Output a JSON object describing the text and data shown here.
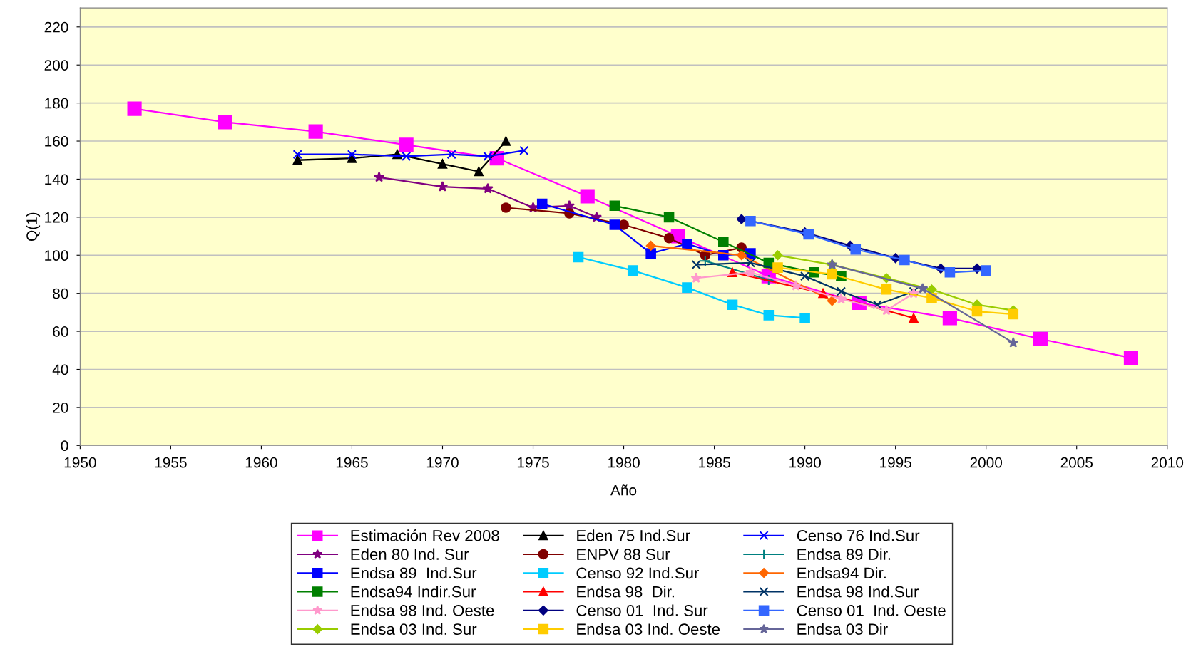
{
  "chart_data": {
    "type": "line",
    "xlabel": "Año",
    "ylabel": "Q(1)",
    "xlim": [
      1950,
      2010
    ],
    "xticks": [
      1950,
      1955,
      1960,
      1965,
      1970,
      1975,
      1980,
      1985,
      1990,
      1995,
      2000,
      2005,
      2010
    ],
    "ylim": [
      0,
      230
    ],
    "yticks": [
      0,
      20,
      40,
      60,
      80,
      100,
      120,
      140,
      160,
      180,
      200,
      220
    ],
    "grid": "y",
    "legend": "bottom",
    "line_style": "solid",
    "series": [
      {
        "name": "Estimación Rev 2008",
        "color": "#ff00ff",
        "marker": "square",
        "x": [
          1953,
          1958,
          1963,
          1968,
          1973,
          1978,
          1983,
          1988,
          1993,
          1998,
          2003,
          2008
        ],
        "values": [
          177,
          170,
          165,
          158,
          151,
          131,
          110,
          89,
          75,
          67,
          56,
          46
        ]
      },
      {
        "name": "Eden 75 Ind.Sur",
        "color": "#000000",
        "marker": "triangle",
        "x": [
          1962,
          1965,
          1967.5,
          1970,
          1972,
          1973.5
        ],
        "values": [
          150,
          151,
          153,
          148,
          144,
          160
        ]
      },
      {
        "name": "Censo 76 Ind.Sur",
        "color": "#0000ff",
        "marker": "cross",
        "x": [
          1962,
          1965,
          1968,
          1970.5,
          1972.5,
          1974.5
        ],
        "values": [
          153,
          153,
          152,
          153,
          152,
          155
        ]
      },
      {
        "name": "Eden 80 Ind. Sur",
        "color": "#800080",
        "marker": "star",
        "x": [
          1966.5,
          1970,
          1972.5,
          1975,
          1977,
          1978.5
        ],
        "values": [
          141,
          136,
          135,
          125,
          126,
          120
        ]
      },
      {
        "name": "ENPV 88 Sur",
        "color": "#800000",
        "marker": "circle",
        "x": [
          1973.5,
          1977,
          1980,
          1982.5,
          1984.5,
          1986.5
        ],
        "values": [
          125,
          122,
          116,
          109,
          100,
          104
        ]
      },
      {
        "name": "Endsa 89 Dir.",
        "color": "#008080",
        "marker": "plus",
        "x": [
          1984.5,
          1988
        ],
        "values": [
          97,
          87
        ]
      },
      {
        "name": "Endsa 89  Ind.Sur",
        "color": "#0000ff",
        "marker": "square",
        "x": [
          1975.5,
          1979.5,
          1981.5,
          1983.5,
          1985.5,
          1987
        ],
        "values": [
          127,
          116,
          101,
          106,
          100,
          101
        ]
      },
      {
        "name": "Censo 92 Ind.Sur",
        "color": "#00ccff",
        "marker": "square",
        "x": [
          1977.5,
          1980.5,
          1983.5,
          1986,
          1988,
          1990
        ],
        "values": [
          99,
          92,
          83,
          74,
          68.5,
          67
        ]
      },
      {
        "name": "Endsa94 Dir.",
        "color": "#ff6600",
        "marker": "diamond",
        "x": [
          1981.5,
          1986.5,
          1991.5
        ],
        "values": [
          105,
          100,
          76
        ]
      },
      {
        "name": "Endsa94 Indir.Sur",
        "color": "#008000",
        "marker": "square",
        "x": [
          1979.5,
          1982.5,
          1985.5,
          1988,
          1990.5,
          1992
        ],
        "values": [
          126,
          120,
          107,
          96,
          91,
          89
        ]
      },
      {
        "name": "Endsa 98  Dir.",
        "color": "#ff0000",
        "marker": "triangle",
        "x": [
          1986,
          1991,
          1996
        ],
        "values": [
          91,
          80,
          67
        ]
      },
      {
        "name": "Endsa 98 Ind.Sur",
        "color": "#003366",
        "marker": "cross",
        "x": [
          1984,
          1987,
          1990,
          1992,
          1994,
          1996
        ],
        "values": [
          95,
          96,
          89,
          81,
          74,
          81
        ]
      },
      {
        "name": "Endsa 98 Ind. Oeste",
        "color": "#ff99cc",
        "marker": "star",
        "x": [
          1984,
          1987,
          1989.5,
          1992,
          1994.5,
          1996
        ],
        "values": [
          88,
          91,
          84,
          77,
          71,
          80
        ]
      },
      {
        "name": "Censo 01  Ind. Sur",
        "color": "#000080",
        "marker": "diamond",
        "x": [
          1986.5,
          1990,
          1992.5,
          1995,
          1997.5,
          1999.5
        ],
        "values": [
          119,
          112,
          105,
          98.5,
          93,
          93
        ]
      },
      {
        "name": "Censo 01  Ind. Oeste",
        "color": "#3366ff",
        "marker": "square",
        "x": [
          1987,
          1990.2,
          1992.8,
          1995.5,
          1998,
          2000
        ],
        "values": [
          118,
          111,
          103,
          97.5,
          91,
          92
        ]
      },
      {
        "name": "Endsa 03 Ind. Sur",
        "color": "#99cc00",
        "marker": "diamond",
        "x": [
          1988.5,
          1991.5,
          1994.5,
          1997,
          1999.5,
          2001.5
        ],
        "values": [
          100,
          95,
          88,
          82,
          74,
          71
        ]
      },
      {
        "name": "Endsa 03 Ind. Oeste",
        "color": "#ffcc00",
        "marker": "square",
        "x": [
          1988.5,
          1991.5,
          1994.5,
          1997,
          1999.5,
          2001.5
        ],
        "values": [
          93.5,
          90,
          82,
          77.5,
          70.5,
          69
        ]
      },
      {
        "name": "Endsa 03 Dir",
        "color": "#666699",
        "marker": "star",
        "x": [
          1991.5,
          1996.5,
          2001.5
        ],
        "values": [
          95,
          82.5,
          54
        ]
      }
    ]
  }
}
